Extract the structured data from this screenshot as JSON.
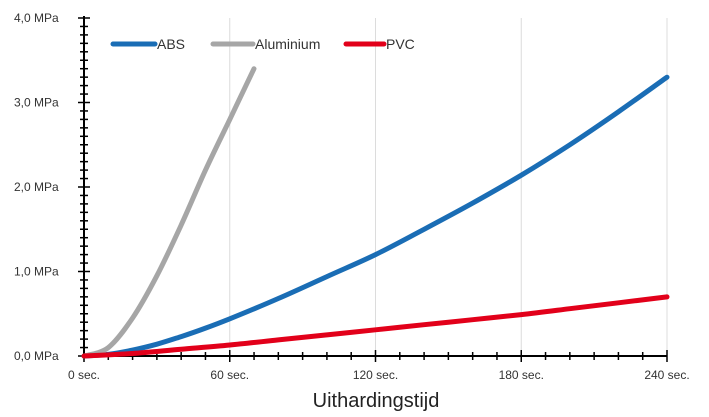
{
  "chart_data": {
    "type": "line",
    "xlabel": "Uithardingstijd",
    "ylabel": "",
    "xlim": [
      0,
      240
    ],
    "ylim": [
      0,
      4
    ],
    "x_ticks": [
      0,
      60,
      120,
      180,
      240
    ],
    "x_tick_labels": [
      "0 sec.",
      "60 sec.",
      "120 sec.",
      "180 sec.",
      "240 sec."
    ],
    "y_ticks": [
      0,
      1,
      2,
      3,
      4
    ],
    "y_tick_labels": [
      "0,0 MPa",
      "1,0 MPa",
      "2,0 MPa",
      "3,0 MPa",
      "4,0 MPa"
    ],
    "grid": "vertical",
    "legend_position": "top-left",
    "series": [
      {
        "name": "ABS",
        "color": "#1a6db5",
        "x": [
          0,
          10,
          20,
          30,
          40,
          50,
          60,
          80,
          100,
          120,
          140,
          160,
          180,
          200,
          220,
          240
        ],
        "y": [
          0,
          0.02,
          0.07,
          0.14,
          0.23,
          0.33,
          0.44,
          0.68,
          0.94,
          1.2,
          1.5,
          1.81,
          2.14,
          2.5,
          2.89,
          3.3
        ]
      },
      {
        "name": "Aluminium",
        "color": "#a6a6a6",
        "x": [
          0,
          10,
          20,
          30,
          40,
          50,
          60,
          70
        ],
        "y": [
          0,
          0.1,
          0.45,
          0.95,
          1.55,
          2.2,
          2.8,
          3.4
        ]
      },
      {
        "name": "PVC",
        "color": "#e2001a",
        "x": [
          0,
          20,
          40,
          60,
          80,
          100,
          120,
          140,
          160,
          180,
          200,
          220,
          240
        ],
        "y": [
          0,
          0.03,
          0.08,
          0.13,
          0.19,
          0.25,
          0.31,
          0.37,
          0.43,
          0.49,
          0.56,
          0.63,
          0.7
        ]
      }
    ]
  }
}
